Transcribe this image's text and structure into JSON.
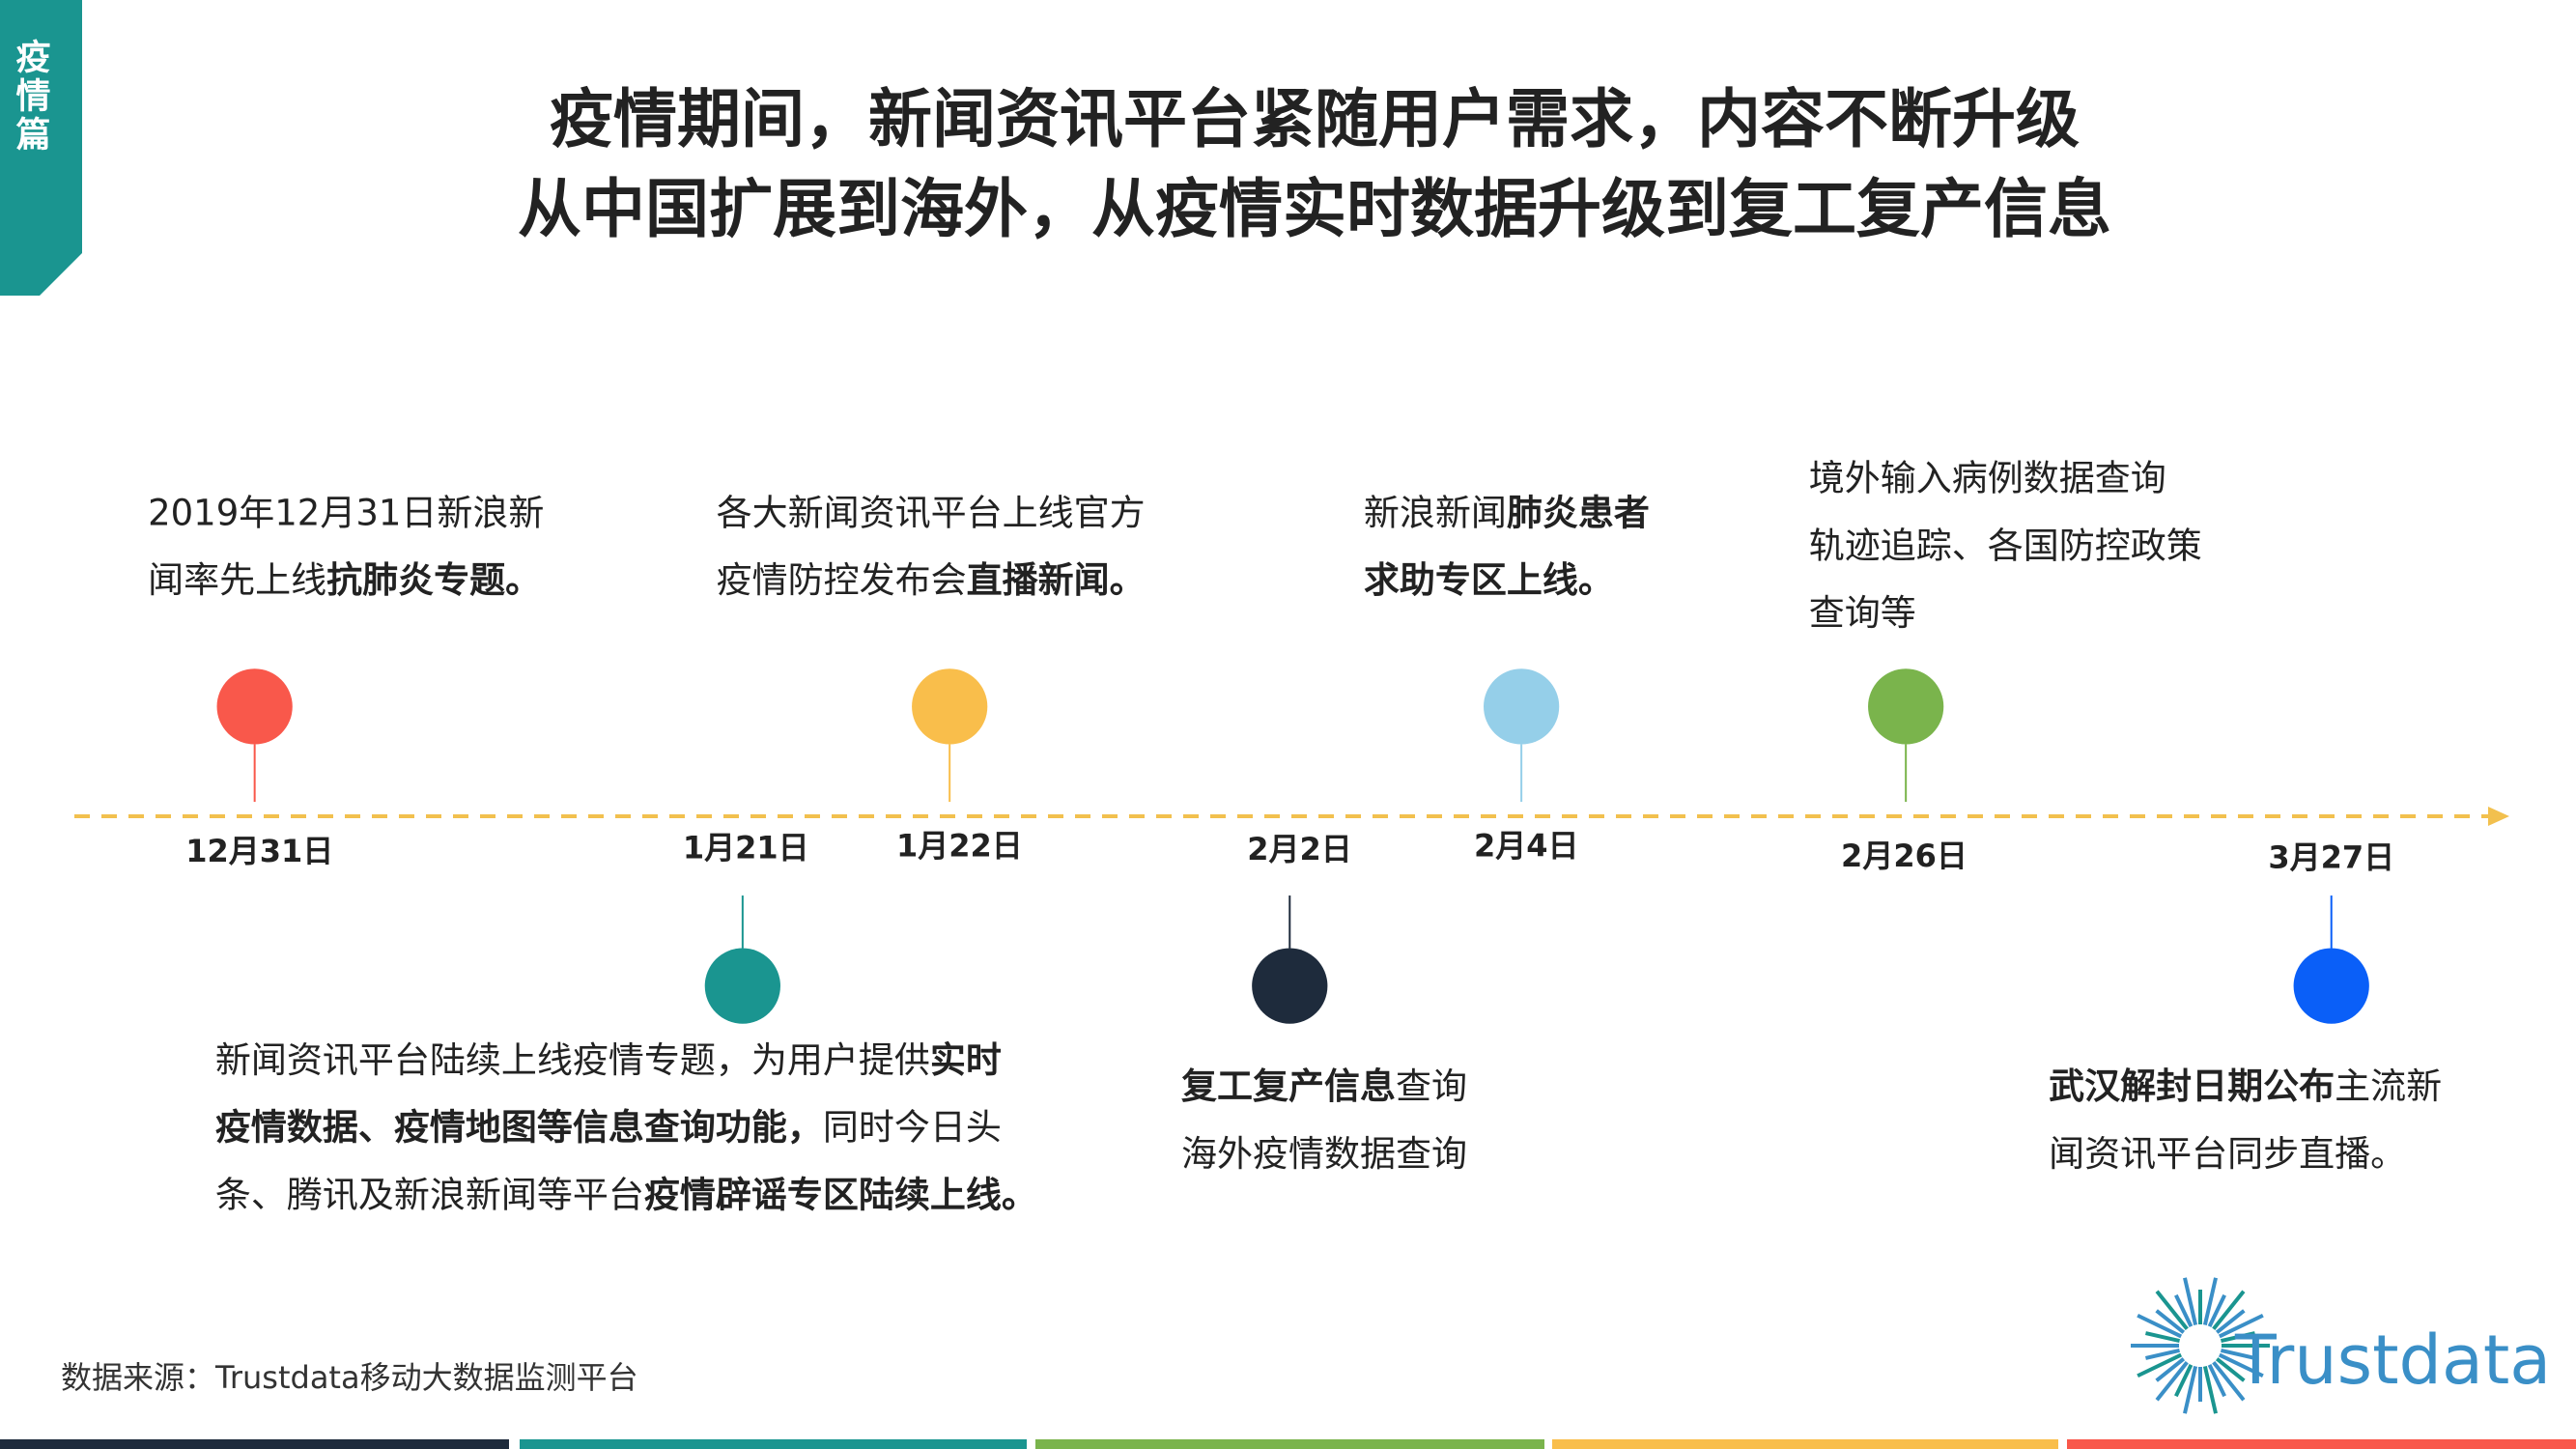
{
  "header": {
    "tab": "疫情篇",
    "title_lines": [
      "疫情期间，新闻资讯平台紧随用户需求，内容不断升级",
      "从中国扩展到海外，从疫情实时数据升级到复工复产信息"
    ]
  },
  "timeline": {
    "events": [
      {
        "date": "12月31日",
        "color": "#f9584b",
        "lines": [
          [
            {
              "text": "2019年12月31日新浪新",
              "bold": false
            }
          ],
          [
            {
              "text": "闻率先上线",
              "bold": false
            },
            {
              "text": "抗肺炎专题。",
              "bold": true
            }
          ]
        ]
      },
      {
        "date": "1月21日",
        "color": "#1a9590",
        "lines": [
          [
            {
              "text": "新闻资讯平台陆续上线疫情专题，为用户提供",
              "bold": false
            },
            {
              "text": "实时",
              "bold": true
            }
          ],
          [
            {
              "text": "疫情数据、疫情地图等信息查询功能，",
              "bold": true
            },
            {
              "text": "同时今日头",
              "bold": false
            }
          ],
          [
            {
              "text": "条、腾讯及新浪新闻等平台",
              "bold": false
            },
            {
              "text": "疫情辟谣专区陆续上线。",
              "bold": true
            }
          ]
        ]
      },
      {
        "date": "1月22日",
        "color": "#f9be4b",
        "lines": [
          [
            {
              "text": "各大新闻资讯平台上线官方",
              "bold": false
            }
          ],
          [
            {
              "text": "疫情防控发布会",
              "bold": false
            },
            {
              "text": "直播新闻。",
              "bold": true
            }
          ]
        ]
      },
      {
        "date": "2月2日",
        "color": "#1e2b3c",
        "lines": [
          [
            {
              "text": "复工复产信息",
              "bold": true
            },
            {
              "text": "查询",
              "bold": false
            }
          ],
          [
            {
              "text": "海外疫情数据查询",
              "bold": false
            }
          ]
        ]
      },
      {
        "date": "2月4日",
        "color": "#95cfe9",
        "lines": [
          [
            {
              "text": "新浪新闻",
              "bold": false
            },
            {
              "text": "肺炎患者",
              "bold": true
            }
          ],
          [
            {
              "text": "求助专区上线。",
              "bold": true
            }
          ]
        ]
      },
      {
        "date": "2月26日",
        "color": "#7ab44c",
        "lines": [
          [
            {
              "text": "境外输入病例数据查询",
              "bold": false
            }
          ],
          [
            {
              "text": "轨迹追踪、各国防控政策",
              "bold": false
            }
          ],
          [
            {
              "text": "查询等",
              "bold": false
            }
          ]
        ]
      },
      {
        "date": "3月27日",
        "color": "#0a5ff8",
        "lines": [
          [
            {
              "text": "武汉解封日期公布",
              "bold": true
            },
            {
              "text": "主流新",
              "bold": false
            }
          ],
          [
            {
              "text": "闻资讯平台同步直播。",
              "bold": false
            }
          ]
        ]
      }
    ]
  },
  "footer": {
    "source": "数据来源：Trustdata移动大数据监测平台",
    "logo": "Trustdata"
  }
}
